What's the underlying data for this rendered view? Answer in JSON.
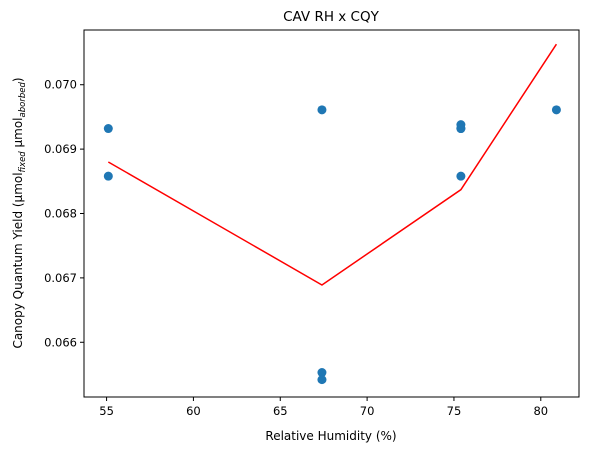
{
  "chart_data": {
    "type": "scatter",
    "title": "CAV RH x CQY",
    "xlabel": "Relative Humidity (%)",
    "ylabel": {
      "main": "Canopy Quantum Yield (µmol",
      "sub1": "fixed",
      "mid": " µmol",
      "sub2": "aborbed",
      "end": ")"
    },
    "xlim": [
      53.7,
      82.2
    ],
    "ylim": [
      0.06515,
      0.07085
    ],
    "x_ticks": [
      55,
      60,
      65,
      70,
      75,
      80
    ],
    "y_ticks": [
      0.066,
      0.067,
      0.068,
      0.069,
      0.07
    ],
    "x_tick_labels": [
      "55",
      "60",
      "65",
      "70",
      "75",
      "80"
    ],
    "y_tick_labels": [
      "0.066",
      "0.067",
      "0.068",
      "0.069",
      "0.070"
    ],
    "grid": false,
    "points": {
      "color": "#1f77b4",
      "x": [
        55.1,
        55.1,
        67.4,
        67.4,
        67.4,
        75.4,
        75.4,
        75.4,
        75.4,
        80.9
      ],
      "y": [
        0.06932,
        0.06858,
        0.06961,
        0.06553,
        0.06542,
        0.06938,
        0.06932,
        0.06858,
        0.06932,
        0.06961
      ]
    },
    "fit_line": {
      "color": "#ff0000",
      "x": [
        55.1,
        67.4,
        75.4,
        80.9
      ],
      "y": [
        0.0688,
        0.06689,
        0.06837,
        0.07063
      ]
    }
  }
}
